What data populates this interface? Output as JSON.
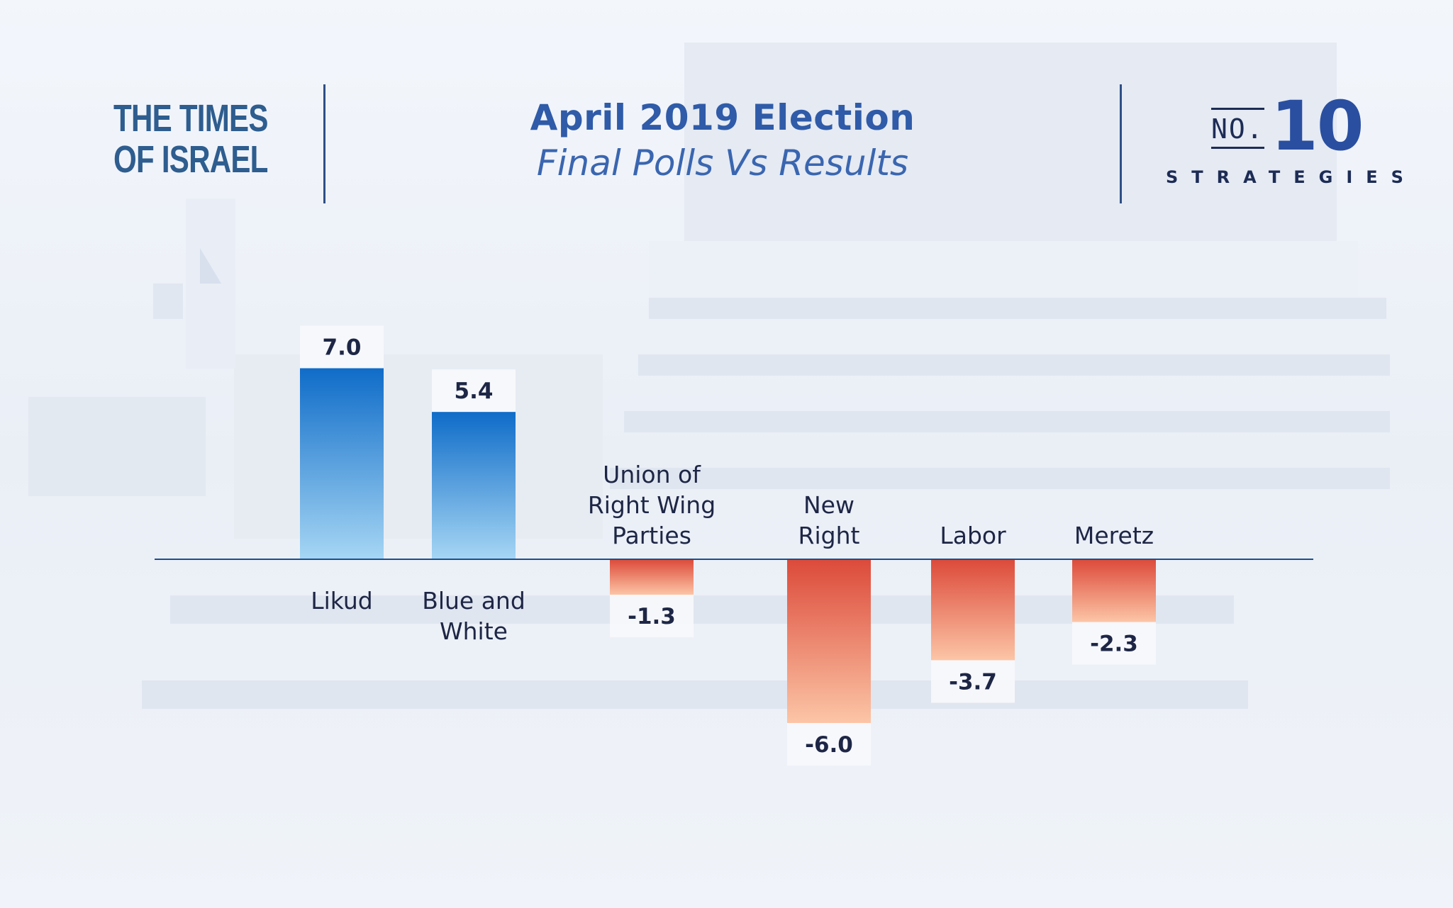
{
  "header": {
    "logo_line1": "THE TIMES",
    "logo_line2": "OF ISRAEL",
    "title": "April 2019 Election",
    "subtitle": "Final Polls Vs Results",
    "no10_prefix": "NO.",
    "no10_number": "10",
    "no10_word": "STRATEGIES"
  },
  "colors": {
    "positive_top": "#0f6cc8",
    "positive_bottom": "#a6d6f4",
    "negative_top": "#dc4a3a",
    "negative_bottom": "#fcc5a6",
    "title": "#2f5ba8",
    "label": "#1d2645",
    "baseline": "#1d4f8a"
  },
  "chart_data": {
    "type": "bar",
    "title": "April 2019 Election",
    "subtitle": "Final Polls Vs Results",
    "categories": [
      "Likud",
      "Blue and White",
      "Union of Right Wing Parties",
      "New Right",
      "Labor",
      "Meretz"
    ],
    "values": [
      7.0,
      5.4,
      -1.3,
      -6.0,
      -3.7,
      -2.3
    ],
    "value_labels": [
      "7.0",
      "5.4",
      "-1.3",
      "-6.0",
      "-3.7",
      "-2.3"
    ],
    "category_label_lines": [
      [
        "Likud"
      ],
      [
        "Blue and",
        "White"
      ],
      [
        "Union of",
        "Right Wing",
        "Parties"
      ],
      [
        "New",
        "Right"
      ],
      [
        "Labor"
      ],
      [
        "Meretz"
      ]
    ],
    "xlabel": "",
    "ylabel": "",
    "grid": false,
    "legend": "none"
  }
}
